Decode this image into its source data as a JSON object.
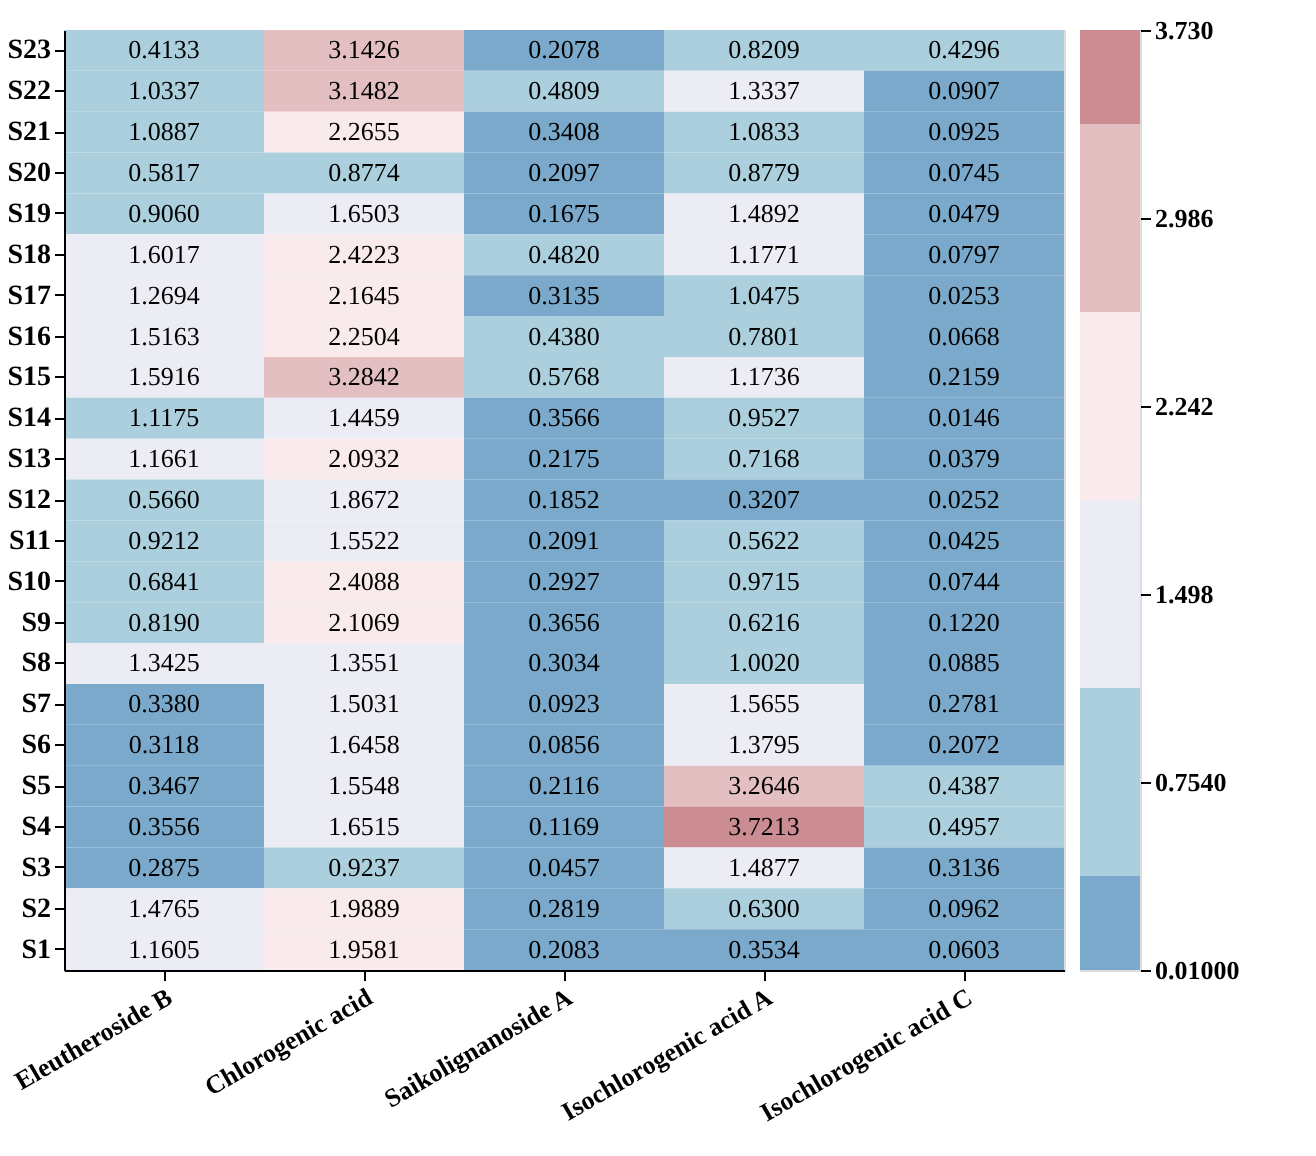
{
  "chart_data": {
    "type": "heatmap",
    "categories": [
      "Eleutheroside B",
      "Chlorogenic acid",
      "Saikolignanoside A",
      "Isochlorogenic acid A",
      "Isochlorogenic acid C"
    ],
    "y_categories": [
      "S23",
      "S22",
      "S21",
      "S20",
      "S19",
      "S18",
      "S17",
      "S16",
      "S15",
      "S14",
      "S13",
      "S12",
      "S11",
      "S10",
      "S9",
      "S8",
      "S7",
      "S6",
      "S5",
      "S4",
      "S3",
      "S2",
      "S1"
    ],
    "cells": [
      [
        0.4133,
        3.1426,
        0.2078,
        0.8209,
        0.4296
      ],
      [
        1.0337,
        3.1482,
        0.4809,
        1.3337,
        0.0907
      ],
      [
        1.0887,
        2.2655,
        0.3408,
        1.0833,
        0.0925
      ],
      [
        0.5817,
        0.8774,
        0.2097,
        0.8779,
        0.0745
      ],
      [
        0.906,
        1.6503,
        0.1675,
        1.4892,
        0.0479
      ],
      [
        1.6017,
        2.4223,
        0.482,
        1.1771,
        0.0797
      ],
      [
        1.2694,
        2.1645,
        0.3135,
        1.0475,
        0.0253
      ],
      [
        1.5163,
        2.2504,
        0.438,
        0.7801,
        0.0668
      ],
      [
        1.5916,
        3.2842,
        0.5768,
        1.1736,
        0.2159
      ],
      [
        1.1175,
        1.4459,
        0.3566,
        0.9527,
        0.0146
      ],
      [
        1.1661,
        2.0932,
        0.2175,
        0.7168,
        0.0379
      ],
      [
        0.566,
        1.8672,
        0.1852,
        0.3207,
        0.0252
      ],
      [
        0.9212,
        1.5522,
        0.2091,
        0.5622,
        0.0425
      ],
      [
        0.6841,
        2.4088,
        0.2927,
        0.9715,
        0.0744
      ],
      [
        0.819,
        2.1069,
        0.3656,
        0.6216,
        0.122
      ],
      [
        1.3425,
        1.3551,
        0.3034,
        1.002,
        0.0885
      ],
      [
        0.338,
        1.5031,
        0.0923,
        1.5655,
        0.2781
      ],
      [
        0.3118,
        1.6458,
        0.0856,
        1.3795,
        0.2072
      ],
      [
        0.3467,
        1.5548,
        0.2116,
        3.2646,
        0.4387
      ],
      [
        0.3556,
        1.6515,
        0.1169,
        3.7213,
        0.4957
      ],
      [
        0.2875,
        0.9237,
        0.0457,
        1.4877,
        0.3136
      ],
      [
        1.4765,
        1.9889,
        0.2819,
        0.63,
        0.0962
      ],
      [
        1.1605,
        1.9581,
        0.2083,
        0.3534,
        0.0603
      ]
    ],
    "cell_labels": [
      [
        "0.4133",
        "3.1426",
        "0.2078",
        "0.8209",
        "0.4296"
      ],
      [
        "1.0337",
        "3.1482",
        "0.4809",
        "1.3337",
        "0.0907"
      ],
      [
        "1.0887",
        "2.2655",
        "0.3408",
        "1.0833",
        "0.0925"
      ],
      [
        "0.5817",
        "0.8774",
        "0.2097",
        "0.8779",
        "0.0745"
      ],
      [
        "0.9060",
        "1.6503",
        "0.1675",
        "1.4892",
        "0.0479"
      ],
      [
        "1.6017",
        "2.4223",
        "0.4820",
        "1.1771",
        "0.0797"
      ],
      [
        "1.2694",
        "2.1645",
        "0.3135",
        "1.0475",
        "0.0253"
      ],
      [
        "1.5163",
        "2.2504",
        "0.4380",
        "0.7801",
        "0.0668"
      ],
      [
        "1.5916",
        "3.2842",
        "0.5768",
        "1.1736",
        "0.2159"
      ],
      [
        "1.1175",
        "1.4459",
        "0.3566",
        "0.9527",
        "0.0146"
      ],
      [
        "1.1661",
        "2.0932",
        "0.2175",
        "0.7168",
        "0.0379"
      ],
      [
        "0.5660",
        "1.8672",
        "0.1852",
        "0.3207",
        "0.0252"
      ],
      [
        "0.9212",
        "1.5522",
        "0.2091",
        "0.5622",
        "0.0425"
      ],
      [
        "0.6841",
        "2.4088",
        "0.2927",
        "0.9715",
        "0.0744"
      ],
      [
        "0.8190",
        "2.1069",
        "0.3656",
        "0.6216",
        "0.1220"
      ],
      [
        "1.3425",
        "1.3551",
        "0.3034",
        "1.0020",
        "0.0885"
      ],
      [
        "0.3380",
        "1.5031",
        "0.0923",
        "1.5655",
        "0.2781"
      ],
      [
        "0.3118",
        "1.6458",
        "0.0856",
        "1.3795",
        "0.2072"
      ],
      [
        "0.3467",
        "1.5548",
        "0.2116",
        "3.2646",
        "0.4387"
      ],
      [
        "0.3556",
        "1.6515",
        "0.1169",
        "3.7213",
        "0.4957"
      ],
      [
        "0.2875",
        "0.9237",
        "0.0457",
        "1.4877",
        "0.3136"
      ],
      [
        "1.4765",
        "1.9889",
        "0.2819",
        "0.6300",
        "0.0962"
      ],
      [
        "1.1605",
        "1.9581",
        "0.2083",
        "0.3534",
        "0.0603"
      ]
    ],
    "colors": [
      "#7aa9cb",
      "#abcfdd",
      "#ececf5",
      "#f9eaec",
      "#e3bfc2",
      "#cb8c92"
    ],
    "clim": [
      0.01,
      3.73
    ],
    "cticks": [
      {
        "value": 0.01,
        "label": "0.01000"
      },
      {
        "value": 0.754,
        "label": "0.7540"
      },
      {
        "value": 1.498,
        "label": "1.498"
      },
      {
        "value": 2.242,
        "label": "2.242"
      },
      {
        "value": 2.986,
        "label": "2.986"
      },
      {
        "value": 3.73,
        "label": "3.730"
      }
    ]
  }
}
